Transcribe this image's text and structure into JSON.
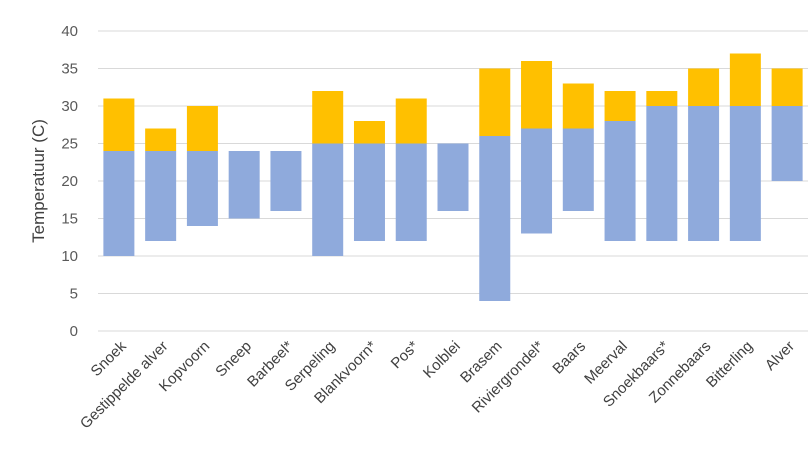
{
  "chart_data": {
    "type": "bar",
    "stacked": "floating",
    "ylabel": "Temperatuur (C)",
    "xlabel": "",
    "ylim": [
      0,
      40
    ],
    "yticks": [
      0,
      5,
      10,
      15,
      20,
      25,
      30,
      35,
      40
    ],
    "grid": true,
    "legend": "none",
    "categories": [
      "Snoek",
      "Gestippelde alver",
      "Kopvoorn",
      "Sneep",
      "Barbeel*",
      "Serpeling",
      "Blankvoorn*",
      "Pos*",
      "Kolblei",
      "Brasem",
      "Riviergrondel*",
      "Baars",
      "Meerval",
      "Snoekbaars*",
      "Zonnebaars",
      "Bitterling",
      "Alver"
    ],
    "series": [
      {
        "color": "#8faadc",
        "low": [
          10,
          12,
          14,
          15,
          16,
          10,
          12,
          12,
          16,
          4,
          13,
          16,
          12,
          12,
          12,
          12,
          20
        ],
        "high": [
          24,
          24,
          24,
          24,
          24,
          25,
          25,
          25,
          25,
          26,
          27,
          27,
          28,
          30,
          30,
          30,
          30
        ]
      },
      {
        "color": "#ffc000",
        "low": [
          24,
          24,
          24,
          24,
          24,
          25,
          25,
          25,
          25,
          26,
          27,
          27,
          28,
          30,
          30,
          30,
          30
        ],
        "high": [
          31,
          27,
          30,
          24,
          24,
          32,
          28,
          31,
          25,
          35,
          36,
          33,
          32,
          32,
          35,
          37,
          35
        ]
      }
    ]
  }
}
